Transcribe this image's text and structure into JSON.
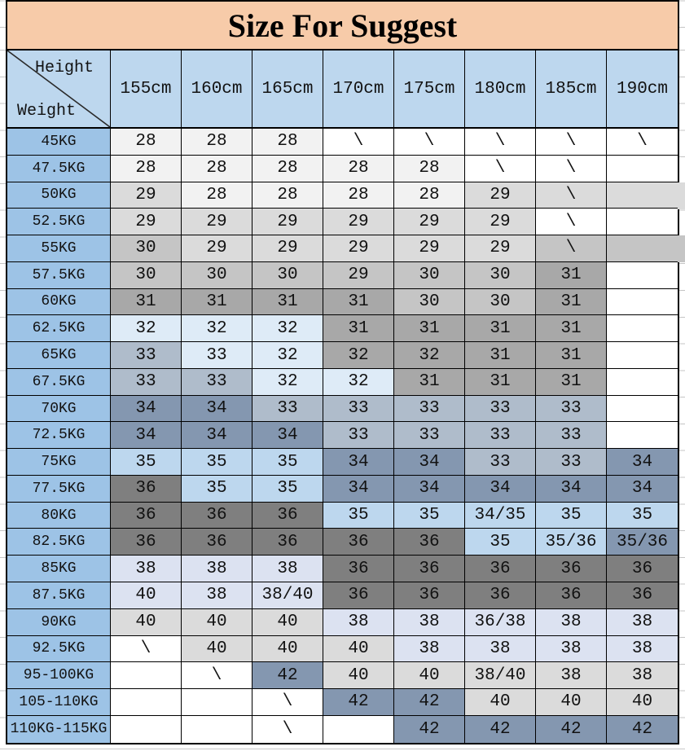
{
  "colors": {
    "title_bg": "#F7CBA9",
    "header_bg": "#BDD7EE",
    "label_bg": "#9DC3E6",
    "border": "#000000",
    "text": "#121212",
    "cell": {
      "w": "#FFFFFF",
      "g1": "#F2F2F2",
      "g2": "#DBDBDB",
      "g3": "#C5C5C5",
      "g4": "#A8A8A8",
      "g5": "#7F7F7F",
      "b1": "#DEEBF7",
      "b2": "#BDD7EE",
      "lav": "#DCE2F1",
      "bg1": "#AFBCCB",
      "bg2": "#8497B0"
    }
  },
  "chart_data": {
    "type": "table",
    "title": "Size For Suggest",
    "corner": {
      "top_label": "Height",
      "bottom_label": "Weight"
    },
    "columns": [
      "155cm",
      "160cm",
      "165cm",
      "170cm",
      "175cm",
      "180cm",
      "185cm",
      "190cm"
    ],
    "rows": [
      {
        "label": "45KG",
        "cells": [
          [
            "28",
            "g1"
          ],
          [
            "28",
            "g1"
          ],
          [
            "28",
            "g1"
          ],
          [
            "\\",
            "w"
          ],
          [
            "\\",
            "w"
          ],
          [
            "\\",
            "w"
          ],
          [
            "\\",
            "w"
          ],
          [
            "\\",
            "w"
          ]
        ]
      },
      {
        "label": "47.5KG",
        "cells": [
          [
            "28",
            "g1"
          ],
          [
            "28",
            "g1"
          ],
          [
            "28",
            "g1"
          ],
          [
            "28",
            "g1"
          ],
          [
            "28",
            "g1"
          ],
          [
            "\\",
            "w"
          ],
          [
            "\\",
            "w"
          ],
          [
            "",
            "w"
          ]
        ]
      },
      {
        "label": "50KG",
        "extend": "g2",
        "cells": [
          [
            "29",
            "g2"
          ],
          [
            "28",
            "g1"
          ],
          [
            "28",
            "g1"
          ],
          [
            "28",
            "g1"
          ],
          [
            "28",
            "g1"
          ],
          [
            "29",
            "g2"
          ],
          [
            "\\",
            "g2"
          ],
          [
            "",
            "g2"
          ]
        ]
      },
      {
        "label": "52.5KG",
        "cells": [
          [
            "29",
            "g2"
          ],
          [
            "29",
            "g2"
          ],
          [
            "29",
            "g2"
          ],
          [
            "29",
            "g2"
          ],
          [
            "29",
            "g2"
          ],
          [
            "29",
            "g2"
          ],
          [
            "\\",
            "w"
          ],
          [
            "",
            "w"
          ]
        ]
      },
      {
        "label": "55KG",
        "extend": "g3",
        "cells": [
          [
            "30",
            "g3"
          ],
          [
            "29",
            "g2"
          ],
          [
            "29",
            "g2"
          ],
          [
            "29",
            "g2"
          ],
          [
            "29",
            "g2"
          ],
          [
            "29",
            "g2"
          ],
          [
            "\\",
            "g3"
          ],
          [
            "",
            "g3"
          ]
        ]
      },
      {
        "label": "57.5KG",
        "cells": [
          [
            "30",
            "g3"
          ],
          [
            "30",
            "g3"
          ],
          [
            "30",
            "g3"
          ],
          [
            "29",
            "g3"
          ],
          [
            "30",
            "g3"
          ],
          [
            "30",
            "g3"
          ],
          [
            "31",
            "g4"
          ],
          [
            "",
            "w"
          ]
        ]
      },
      {
        "label": "60KG",
        "cells": [
          [
            "31",
            "g4"
          ],
          [
            "31",
            "g4"
          ],
          [
            "31",
            "g4"
          ],
          [
            "31",
            "g4"
          ],
          [
            "30",
            "g3"
          ],
          [
            "30",
            "g3"
          ],
          [
            "31",
            "g4"
          ],
          [
            "",
            "w"
          ]
        ]
      },
      {
        "label": "62.5KG",
        "cells": [
          [
            "32",
            "b1"
          ],
          [
            "32",
            "b1"
          ],
          [
            "32",
            "b1"
          ],
          [
            "31",
            "g4"
          ],
          [
            "31",
            "g4"
          ],
          [
            "31",
            "g4"
          ],
          [
            "31",
            "g4"
          ],
          [
            "",
            "w"
          ]
        ]
      },
      {
        "label": "65KG",
        "cells": [
          [
            "33",
            "bg1"
          ],
          [
            "33",
            "b1"
          ],
          [
            "32",
            "b1"
          ],
          [
            "32",
            "g4"
          ],
          [
            "32",
            "g4"
          ],
          [
            "31",
            "g4"
          ],
          [
            "31",
            "g4"
          ],
          [
            "",
            "w"
          ]
        ]
      },
      {
        "label": "67.5KG",
        "cells": [
          [
            "33",
            "bg1"
          ],
          [
            "33",
            "bg1"
          ],
          [
            "32",
            "b1"
          ],
          [
            "32",
            "b1"
          ],
          [
            "31",
            "g4"
          ],
          [
            "31",
            "g4"
          ],
          [
            "31",
            "g4"
          ],
          [
            "",
            "w"
          ]
        ]
      },
      {
        "label": "70KG",
        "cells": [
          [
            "34",
            "bg2"
          ],
          [
            "34",
            "bg2"
          ],
          [
            "33",
            "bg1"
          ],
          [
            "33",
            "bg1"
          ],
          [
            "33",
            "bg1"
          ],
          [
            "33",
            "bg1"
          ],
          [
            "33",
            "bg1"
          ],
          [
            "",
            "w"
          ]
        ]
      },
      {
        "label": "72.5KG",
        "cells": [
          [
            "34",
            "bg2"
          ],
          [
            "34",
            "bg2"
          ],
          [
            "34",
            "bg2"
          ],
          [
            "33",
            "bg1"
          ],
          [
            "33",
            "bg1"
          ],
          [
            "33",
            "bg1"
          ],
          [
            "33",
            "bg1"
          ],
          [
            "",
            "w"
          ]
        ]
      },
      {
        "label": "75KG",
        "cells": [
          [
            "35",
            "b2"
          ],
          [
            "35",
            "b2"
          ],
          [
            "35",
            "b2"
          ],
          [
            "34",
            "bg2"
          ],
          [
            "34",
            "bg2"
          ],
          [
            "33",
            "bg1"
          ],
          [
            "33",
            "bg1"
          ],
          [
            "34",
            "bg2"
          ]
        ]
      },
      {
        "label": "77.5KG",
        "cells": [
          [
            "36",
            "g5"
          ],
          [
            "35",
            "b2"
          ],
          [
            "35",
            "b2"
          ],
          [
            "34",
            "bg2"
          ],
          [
            "34",
            "bg2"
          ],
          [
            "34",
            "bg2"
          ],
          [
            "34",
            "bg2"
          ],
          [
            "34",
            "bg2"
          ]
        ]
      },
      {
        "label": "80KG",
        "cells": [
          [
            "36",
            "g5"
          ],
          [
            "36",
            "g5"
          ],
          [
            "36",
            "g5"
          ],
          [
            "35",
            "b2"
          ],
          [
            "35",
            "b2"
          ],
          [
            "34/35",
            "b2"
          ],
          [
            "35",
            "b2"
          ],
          [
            "35",
            "b2"
          ]
        ]
      },
      {
        "label": "82.5KG",
        "cells": [
          [
            "36",
            "g5"
          ],
          [
            "36",
            "g5"
          ],
          [
            "36",
            "g5"
          ],
          [
            "36",
            "g5"
          ],
          [
            "36",
            "g5"
          ],
          [
            "35",
            "b2"
          ],
          [
            "35/36",
            "b2"
          ],
          [
            "35/36",
            "bg2"
          ]
        ]
      },
      {
        "label": "85KG",
        "cells": [
          [
            "38",
            "lav"
          ],
          [
            "38",
            "lav"
          ],
          [
            "38",
            "lav"
          ],
          [
            "36",
            "g5"
          ],
          [
            "36",
            "g5"
          ],
          [
            "36",
            "g5"
          ],
          [
            "36",
            "g5"
          ],
          [
            "36",
            "g5"
          ]
        ]
      },
      {
        "label": "87.5KG",
        "cells": [
          [
            "40",
            "lav"
          ],
          [
            "38",
            "lav"
          ],
          [
            "38/40",
            "lav"
          ],
          [
            "36",
            "g5"
          ],
          [
            "36",
            "g5"
          ],
          [
            "36",
            "g5"
          ],
          [
            "36",
            "g5"
          ],
          [
            "36",
            "g5"
          ]
        ]
      },
      {
        "label": "90KG",
        "cells": [
          [
            "40",
            "g2"
          ],
          [
            "40",
            "g2"
          ],
          [
            "40",
            "g2"
          ],
          [
            "38",
            "lav"
          ],
          [
            "38",
            "lav"
          ],
          [
            "36/38",
            "lav"
          ],
          [
            "38",
            "lav"
          ],
          [
            "38",
            "lav"
          ]
        ]
      },
      {
        "label": "92.5KG",
        "cells": [
          [
            "\\",
            "w"
          ],
          [
            "40",
            "g2"
          ],
          [
            "40",
            "g2"
          ],
          [
            "40",
            "g2"
          ],
          [
            "38",
            "lav"
          ],
          [
            "38",
            "lav"
          ],
          [
            "38",
            "lav"
          ],
          [
            "38",
            "lav"
          ]
        ]
      },
      {
        "label": "95-100KG",
        "cells": [
          [
            "",
            "w"
          ],
          [
            "\\",
            "w"
          ],
          [
            "42",
            "bg2"
          ],
          [
            "40",
            "g2"
          ],
          [
            "40",
            "g2"
          ],
          [
            "38/40",
            "g2"
          ],
          [
            "38",
            "g2"
          ],
          [
            "38",
            "g2"
          ]
        ]
      },
      {
        "label": "105-110KG",
        "cells": [
          [
            "",
            "w"
          ],
          [
            "",
            "w"
          ],
          [
            "\\",
            "w"
          ],
          [
            "42",
            "bg2"
          ],
          [
            "42",
            "bg2"
          ],
          [
            "40",
            "g2"
          ],
          [
            "40",
            "g2"
          ],
          [
            "40",
            "g2"
          ]
        ]
      },
      {
        "label": "110KG-115KG",
        "cells": [
          [
            "",
            "w"
          ],
          [
            "",
            "w"
          ],
          [
            "\\",
            "w"
          ],
          [
            "",
            "w"
          ],
          [
            "42",
            "bg2"
          ],
          [
            "42",
            "bg2"
          ],
          [
            "42",
            "bg2"
          ],
          [
            "42",
            "bg2"
          ]
        ]
      }
    ]
  }
}
